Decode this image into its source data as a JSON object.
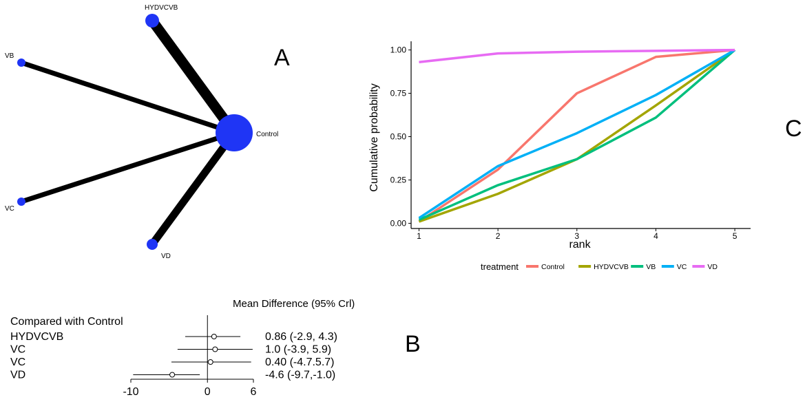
{
  "panels": {
    "a": "A",
    "b": "B",
    "c": "C"
  },
  "network": {
    "nodes": [
      {
        "id": "HYDVCVB",
        "label": "HYDVCVB"
      },
      {
        "id": "VB",
        "label": "VB"
      },
      {
        "id": "Control",
        "label": "Control"
      },
      {
        "id": "VC",
        "label": "VC"
      },
      {
        "id": "VD",
        "label": "VD"
      }
    ],
    "edges": [
      {
        "from": "HYDVCVB",
        "to": "Control",
        "weight": 3
      },
      {
        "from": "VB",
        "to": "Control",
        "weight": 1
      },
      {
        "from": "VC",
        "to": "Control",
        "weight": 1
      },
      {
        "from": "VD",
        "to": "Control",
        "weight": 2
      }
    ]
  },
  "chart_data": [
    {
      "type": "line",
      "title": "",
      "xlabel": "rank",
      "ylabel": "Cumulative probability",
      "x": [
        1,
        2,
        3,
        4,
        5
      ],
      "xlim": [
        0.9,
        5.2
      ],
      "ylim": [
        -0.03,
        1.05
      ],
      "yticks": [
        0.0,
        0.25,
        0.5,
        0.75,
        1.0
      ],
      "ytick_labels": [
        "0.00",
        "0.25",
        "0.50",
        "0.75",
        "1.00"
      ],
      "xtick_labels": [
        "1",
        "2",
        "3",
        "4",
        "5"
      ],
      "legend_title": "treatment",
      "legend_position": "bottom",
      "series": [
        {
          "name": "Control",
          "color": "#f8766d",
          "values": [
            0.01,
            0.31,
            0.75,
            0.96,
            1.0
          ]
        },
        {
          "name": "HYDVCVB",
          "color": "#a3a500",
          "values": [
            0.01,
            0.17,
            0.37,
            0.68,
            1.0
          ]
        },
        {
          "name": "VB",
          "color": "#00bf7d",
          "values": [
            0.02,
            0.22,
            0.37,
            0.61,
            1.0
          ]
        },
        {
          "name": "VC",
          "color": "#00b0f6",
          "values": [
            0.03,
            0.33,
            0.52,
            0.74,
            1.0
          ]
        },
        {
          "name": "VD",
          "color": "#e76bf3",
          "values": [
            0.93,
            0.98,
            0.99,
            0.995,
            1.0
          ]
        }
      ]
    },
    {
      "type": "forest",
      "title": "Mean Difference (95% Crl)",
      "header": "Compared with Control",
      "xlim": [
        -10,
        6
      ],
      "xticks": [
        -10,
        0,
        6
      ],
      "xtick_labels": [
        "-10",
        "0",
        "6"
      ],
      "reference": 0,
      "rows": [
        {
          "label": "HYDVCVB",
          "mean": 0.86,
          "lo": -2.9,
          "hi": 4.3,
          "text": "0.86 (-2.9, 4.3)"
        },
        {
          "label": "VC",
          "mean": 1.0,
          "lo": -3.9,
          "hi": 5.9,
          "text": "1.0 (-3.9, 5.9)"
        },
        {
          "label": "VC",
          "mean": 0.4,
          "lo": -4.7,
          "hi": 5.7,
          "text": "0.40 (-4.7.5.7)"
        },
        {
          "label": "VD",
          "mean": -4.6,
          "lo": -9.7,
          "hi": -1.0,
          "text": "-4.6 (-9.7,-1.0)"
        }
      ]
    }
  ]
}
